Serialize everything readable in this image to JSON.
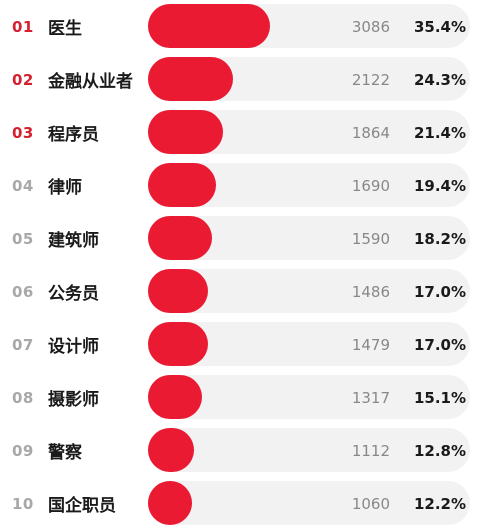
{
  "colors": {
    "bar": "#ea1a33",
    "track": "#f2f2f2",
    "rank_top": "#d4202f",
    "rank_other": "#a8a8a8"
  },
  "chart_data": {
    "type": "bar",
    "orientation": "horizontal",
    "ranks": [
      "01",
      "02",
      "03",
      "04",
      "05",
      "06",
      "07",
      "08",
      "09",
      "10"
    ],
    "categories": [
      "医生",
      "金融从业者",
      "程序员",
      "律师",
      "建筑师",
      "公务员",
      "设计师",
      "摄影师",
      "警察",
      "国企职员"
    ],
    "values": [
      3086,
      2122,
      1864,
      1690,
      1590,
      1486,
      1479,
      1317,
      1112,
      1060
    ],
    "percentages": [
      "35.4%",
      "24.3%",
      "21.4%",
      "19.4%",
      "18.2%",
      "17.0%",
      "17.0%",
      "15.1%",
      "12.8%",
      "12.2%"
    ],
    "highlight_top_n": 3,
    "max_value": 3086
  }
}
